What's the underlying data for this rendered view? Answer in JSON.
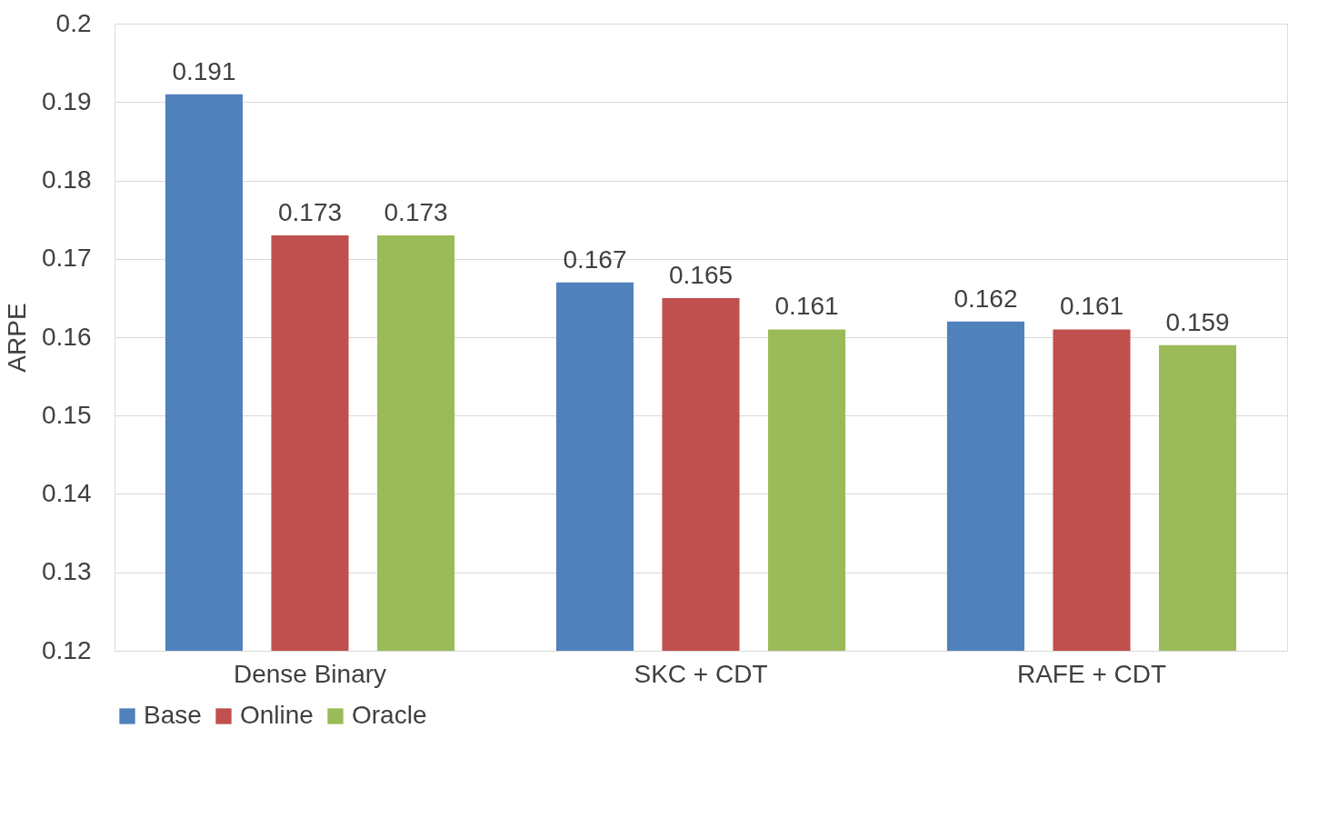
{
  "chart_data": {
    "type": "bar",
    "ylabel": "ARPE",
    "categories": [
      "Dense Binary",
      "SKC + CDT",
      "RAFE + CDT"
    ],
    "series": [
      {
        "name": "Base",
        "color": "#4f81bd",
        "values": [
          0.191,
          0.167,
          0.162
        ]
      },
      {
        "name": "Online",
        "color": "#c0504d",
        "values": [
          0.173,
          0.165,
          0.161
        ]
      },
      {
        "name": "Oracle",
        "color": "#9bbb59",
        "values": [
          0.173,
          0.161,
          0.159
        ]
      }
    ],
    "ylim": [
      0.12,
      0.2
    ],
    "yticks": [
      0.12,
      0.13,
      0.14,
      0.15,
      0.16,
      0.17,
      0.18,
      0.19,
      0.2
    ],
    "grid": "y",
    "legend": "bottom",
    "data_labels": true
  }
}
